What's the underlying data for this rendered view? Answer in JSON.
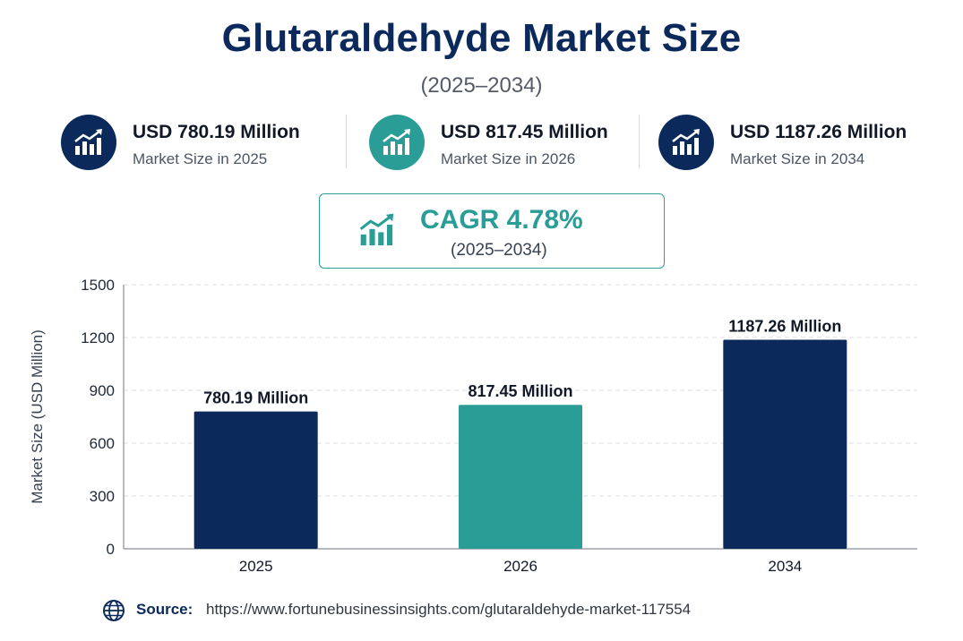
{
  "header": {
    "title": "Glutaraldehyde Market Size",
    "subtitle": "(2025–2034)"
  },
  "stats": [
    {
      "value": "USD 780.19 Million",
      "label": "Market Size in 2025",
      "color": "#0b2a5b"
    },
    {
      "value": "USD 817.45 Million",
      "label": "Market Size in 2026",
      "color": "#2a9d96"
    },
    {
      "value": "USD 1187.26 Million",
      "label": "Market Size in 2034",
      "color": "#0b2a5b"
    }
  ],
  "cagr": {
    "label": "CAGR  4.78%",
    "range": "(2025–2034)",
    "icon": "growth-chart-icon"
  },
  "chart_data": {
    "type": "bar",
    "categories": [
      "2025",
      "2026",
      "2034"
    ],
    "values": [
      780.19,
      817.45,
      1187.26
    ],
    "data_labels": [
      "780.19 Million",
      "817.45 Million",
      "1187.26 Million"
    ],
    "bar_colors": [
      "#0b2a5b",
      "#2a9d96",
      "#0b2a5b"
    ],
    "ylabel": "Market Size (USD Million)",
    "xlabel": "",
    "ylim": [
      0,
      1500
    ],
    "yticks": [
      0,
      300,
      600,
      900,
      1200,
      1500
    ],
    "grid": true
  },
  "source": {
    "label": "Source:",
    "url": "https://www.fortunebusinessinsights.com/glutaraldehyde-market-117554",
    "icon": "globe-icon"
  }
}
